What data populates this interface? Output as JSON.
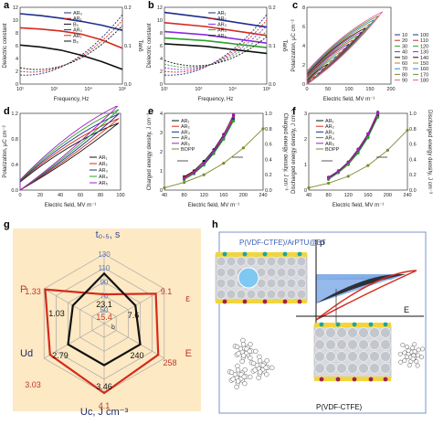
{
  "panels": {
    "a": {
      "label": "a",
      "chart_data": {
        "type": "line",
        "xlabel": "Frequency, Hz",
        "ylabel": "Dielectric constant",
        "y2label": "Tanδ",
        "xscale": "log",
        "xlim": [
          10,
          1000000
        ],
        "ylim": [
          0,
          12
        ],
        "y2lim": [
          0,
          0.2
        ],
        "xticks": [
          "10¹",
          "10²",
          "10⁴",
          "10⁶"
        ],
        "yticks": [
          "0",
          "2",
          "4",
          "6",
          "8",
          "10",
          "12"
        ],
        "y2ticks": [
          "0.0",
          "0.1",
          "0.2"
        ],
        "legend": [
          "AR₀",
          "AR₁",
          "B₀",
          "AR₀",
          "AR₁",
          "B₀"
        ],
        "series": [
          {
            "name": "AR₀",
            "color": "#1f2d8a",
            "x": [
              10,
              100,
              1000,
              10000,
              100000,
              1000000
            ],
            "y": [
              11.0,
              10.7,
              10.3,
              9.8,
              9.2,
              8.4
            ]
          },
          {
            "name": "AR₁",
            "color": "#d42a1c",
            "x": [
              10,
              100,
              1000,
              10000,
              100000,
              1000000
            ],
            "y": [
              8.8,
              8.6,
              8.3,
              7.8,
              6.9,
              5.6
            ]
          },
          {
            "name": "B₀",
            "color": "#111111",
            "x": [
              10,
              100,
              1000,
              10000,
              100000,
              1000000
            ],
            "y": [
              6.1,
              5.8,
              5.3,
              4.5,
              3.5,
              2.3
            ]
          }
        ]
      }
    },
    "b": {
      "label": "b",
      "chart_data": {
        "type": "line",
        "xlabel": "Frequency, Hz",
        "ylabel": "Dielectric constant",
        "y2label": "Tanδ",
        "xscale": "log",
        "xlim": [
          10,
          1000000
        ],
        "ylim": [
          0,
          12
        ],
        "xticks": [
          "10¹",
          "10²",
          "10⁴",
          "10⁶"
        ],
        "yticks": [
          "0",
          "2",
          "4",
          "6",
          "8",
          "10",
          "12"
        ],
        "y2ticks": [
          "0.0",
          "0.1",
          "0.2"
        ],
        "legend": [
          "AR₁",
          "AR₂",
          "AR₃",
          "AR₄",
          "AR₅"
        ],
        "series": [
          {
            "name": "AR₁",
            "color": "#1f2d8a",
            "x": [
              10,
              1000,
              1000000
            ],
            "y": [
              11.2,
              10.4,
              8.9
            ]
          },
          {
            "name": "AR₂",
            "color": "#d42a1c",
            "x": [
              10,
              1000,
              1000000
            ],
            "y": [
              9.6,
              9.0,
              7.6
            ]
          },
          {
            "name": "AR₃",
            "color": "#8a2be2",
            "x": [
              10,
              1000,
              1000000
            ],
            "y": [
              8.2,
              7.7,
              6.4
            ]
          },
          {
            "name": "AR₄",
            "color": "#2aa02a",
            "x": [
              10,
              1000,
              1000000
            ],
            "y": [
              7.2,
              6.8,
              5.7
            ]
          },
          {
            "name": "AR₅",
            "color": "#111111",
            "x": [
              10,
              1000,
              1000000
            ],
            "y": [
              6.3,
              5.9,
              4.8
            ]
          }
        ]
      }
    },
    "c": {
      "label": "c",
      "chart_data": {
        "type": "line",
        "xlabel": "Electric field, MV m⁻¹",
        "ylabel": "Polarization, μC cm⁻²",
        "xlim": [
          0,
          200
        ],
        "ylim": [
          0,
          8
        ],
        "xticks": [
          "0",
          "50",
          "100",
          "150",
          "200"
        ],
        "yticks": [
          "0",
          "2",
          "4",
          "6",
          "8"
        ],
        "legend": [
          "10",
          "20",
          "30",
          "40",
          "50",
          "60",
          "70",
          "80",
          "90",
          "100",
          "110",
          "120",
          "130",
          "140",
          "150",
          "160",
          "170",
          "180"
        ]
      }
    },
    "d": {
      "label": "d",
      "chart_data": {
        "type": "line",
        "xlabel": "Electric field, MV m⁻¹",
        "ylabel": "Polarization, μC cm⁻²",
        "xlim": [
          0,
          100
        ],
        "ylim": [
          0,
          1.2
        ],
        "xticks": [
          "0",
          "20",
          "40",
          "60",
          "80",
          "100"
        ],
        "yticks": [
          "0.0",
          "0.4",
          "0.8",
          "1.2"
        ],
        "legend": [
          "AR₁",
          "AR₂",
          "AR₃",
          "AR₄",
          "AR₅"
        ]
      }
    },
    "e": {
      "label": "e",
      "chart_data": {
        "type": "line",
        "xlabel": "Electric field, MV m⁻¹",
        "ylabel": "Charged energy density, J cm⁻³",
        "y2label": "Charged energy density, J cm⁻³",
        "xlim": [
          40,
          240
        ],
        "ylim": [
          0,
          4
        ],
        "y2lim": [
          0,
          1
        ],
        "xticks": [
          "40",
          "80",
          "120",
          "160",
          "200",
          "240"
        ],
        "yticks": [
          "0",
          "1",
          "2",
          "3",
          "4"
        ],
        "y2ticks": [
          "0.0",
          "0.2",
          "0.4",
          "0.6",
          "0.8",
          "1.0"
        ],
        "legend": [
          "AR₁",
          "AR₂",
          "AR₃",
          "AR₄",
          "AR₅",
          "BOPP"
        ],
        "series": [
          {
            "name": "AR₁",
            "color": "#111111",
            "x": [
              80,
              100,
              120,
              140,
              160,
              180
            ],
            "y": [
              0.7,
              1.0,
              1.5,
              2.1,
              2.9,
              3.9
            ]
          },
          {
            "name": "AR₂",
            "color": "#d42a1c",
            "x": [
              80,
              100,
              120,
              140,
              160,
              180
            ],
            "y": [
              0.65,
              0.95,
              1.4,
              2.0,
              2.8,
              3.8
            ]
          },
          {
            "name": "AR₃",
            "color": "#1f2d8a",
            "x": [
              80,
              100,
              120,
              140,
              160,
              180
            ],
            "y": [
              0.6,
              0.9,
              1.35,
              1.95,
              2.7,
              3.7
            ]
          },
          {
            "name": "AR₄",
            "color": "#2aa02a",
            "x": [
              80,
              100,
              120,
              140,
              160,
              180
            ],
            "y": [
              0.55,
              0.85,
              1.3,
              1.9,
              2.65,
              3.6
            ]
          },
          {
            "name": "AR₅",
            "color": "#a020c0",
            "x": [
              80,
              100,
              120,
              140,
              160,
              180
            ],
            "y": [
              0.6,
              0.9,
              1.4,
              2.05,
              2.85,
              3.95
            ]
          },
          {
            "name": "BOPP",
            "color": "#7a8a2a",
            "x": [
              40,
              80,
              120,
              160,
              200,
              240
            ],
            "y2": [
              0.03,
              0.1,
              0.2,
              0.35,
              0.55,
              0.8
            ]
          }
        ]
      }
    },
    "f": {
      "label": "f",
      "chart_data": {
        "type": "line",
        "xlabel": "Electric field, MV m⁻¹",
        "ylabel": "Discharged energy density, J cm⁻³",
        "y2label": "Discharged energy density, J cm⁻³",
        "xlim": [
          40,
          240
        ],
        "ylim": [
          0,
          3
        ],
        "y2lim": [
          0,
          1
        ],
        "xticks": [
          "40",
          "80",
          "120",
          "160",
          "200",
          "240"
        ],
        "yticks": [
          "0",
          "1",
          "2",
          "3"
        ],
        "y2ticks": [
          "0.0",
          "0.2",
          "0.4",
          "0.6",
          "0.8",
          "1.0"
        ],
        "legend": [
          "AR₁",
          "AR₂",
          "AR₃",
          "AR₄",
          "AR₅",
          "BOPP"
        ],
        "series": [
          {
            "name": "AR₁",
            "color": "#111111",
            "x": [
              80,
              100,
              120,
              140,
              160,
              180
            ],
            "y": [
              0.5,
              0.75,
              1.1,
              1.6,
              2.2,
              3.0
            ]
          },
          {
            "name": "AR₂",
            "color": "#d42a1c",
            "x": [
              80,
              100,
              120,
              140,
              160,
              180
            ],
            "y": [
              0.48,
              0.72,
              1.05,
              1.55,
              2.15,
              2.95
            ]
          },
          {
            "name": "AR₃",
            "color": "#1f2d8a",
            "x": [
              80,
              100,
              120,
              140,
              160,
              180
            ],
            "y": [
              0.45,
              0.7,
              1.0,
              1.5,
              2.1,
              2.9
            ]
          },
          {
            "name": "AR₄",
            "color": "#2aa02a",
            "x": [
              80,
              100,
              120,
              140,
              160,
              180
            ],
            "y": [
              0.42,
              0.68,
              1.0,
              1.45,
              2.05,
              2.85
            ]
          },
          {
            "name": "AR₅",
            "color": "#a020c0",
            "x": [
              80,
              100,
              120,
              140,
              160,
              180
            ],
            "y": [
              0.47,
              0.73,
              1.08,
              1.58,
              2.2,
              3.05
            ]
          },
          {
            "name": "BOPP",
            "color": "#7a8a2a",
            "x": [
              40,
              80,
              120,
              160,
              200,
              240
            ],
            "y2": [
              0.03,
              0.09,
              0.18,
              0.32,
              0.52,
              0.78
            ]
          }
        ]
      }
    },
    "g": {
      "label": "g",
      "axes": [
        {
          "key": "t",
          "label": "t₀.₅, s",
          "color": "#3a4d9e"
        },
        {
          "key": "eps",
          "label": "ε",
          "color": "#c0392b"
        },
        {
          "key": "E",
          "label": "E",
          "color": "#c0392b"
        },
        {
          "key": "Uc",
          "label": "Uc, J cm⁻³",
          "color": "#1e2a6e"
        },
        {
          "key": "Ud",
          "label": "Ud",
          "color": "#1e2a6e"
        },
        {
          "key": "P",
          "label": "P",
          "color": "#c0392b"
        }
      ],
      "ring_labels": [
        "50",
        "70",
        "90",
        "110",
        "130"
      ],
      "black_values": [
        "23.1",
        "7.6",
        "240",
        "3.46",
        "2.79",
        "1.03"
      ],
      "red_values": [
        "15.4",
        "9.1",
        "258",
        "4.1",
        "3.03",
        "1.33"
      ],
      "center_label": "b",
      "chart_data": {
        "type": "radar",
        "axes": [
          "t₀.₅, s",
          "ε",
          "E",
          "Uc, J cm⁻³",
          "Ud",
          "P"
        ],
        "series": [
          {
            "color": "#111111",
            "values": [
              23.1,
              7.6,
              240,
              3.46,
              2.79,
              1.03
            ]
          },
          {
            "color": "#d42a1c",
            "values": [
              15.4,
              9.1,
              258,
              4.1,
              3.03,
              1.33
            ]
          }
        ]
      }
    },
    "h": {
      "label": "h",
      "title": "P(VDF-CTFE)/ArPTU@BT",
      "bottom_title": "P(VDF-CTFE)",
      "axis_p": "P",
      "axis_e": "E"
    }
  },
  "colors": {
    "accent_blue": "#1f2d8a",
    "accent_red": "#d42a1c",
    "radar_bg": "#fde9c4",
    "h_blue": "#7aa7e6"
  }
}
